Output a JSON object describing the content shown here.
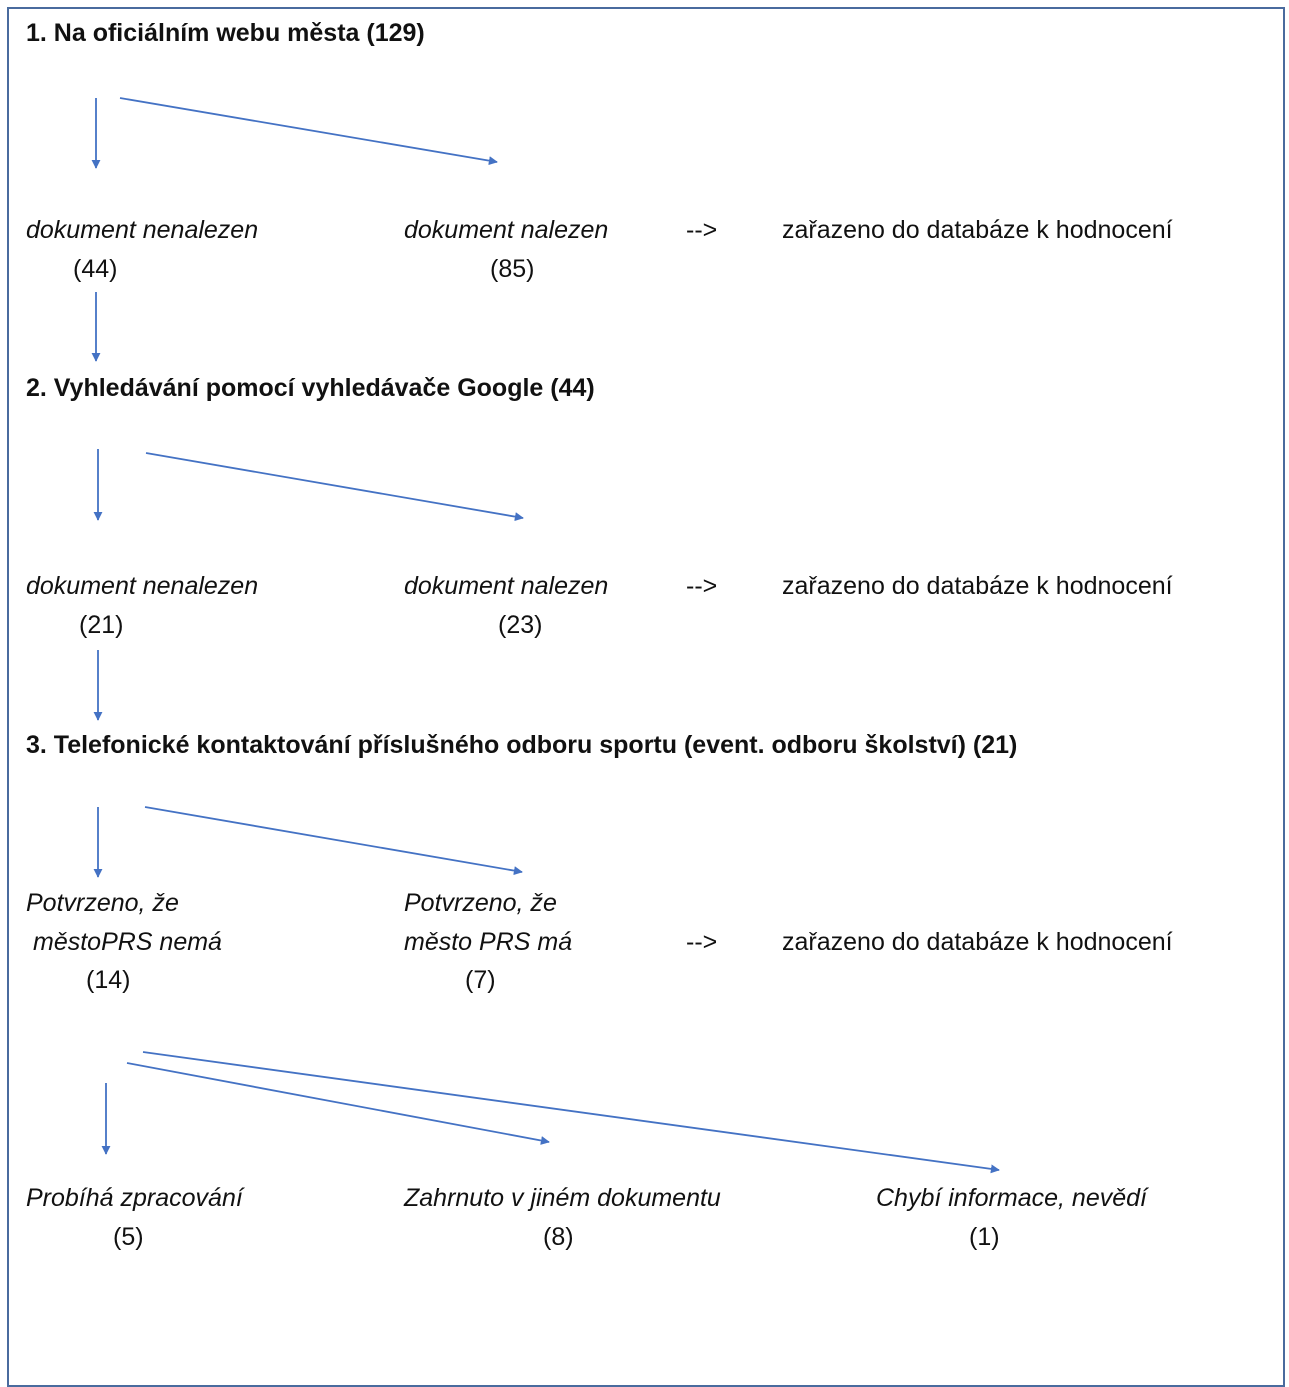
{
  "colors": {
    "arrow": "#4472c4",
    "frame": "#4a6b9e"
  },
  "step1": {
    "heading": "1. Na oficiálním webu města (129)",
    "not_found_label": "dokument nenalezen",
    "not_found_count": "(44)",
    "found_label": "dokument nalezen",
    "found_count": "(85)",
    "arrow_text": "-->",
    "result": "zařazeno do databáze k hodnocení"
  },
  "step2": {
    "heading": "2. Vyhledávání pomocí vyhledávače Google (44)",
    "not_found_label": "dokument nenalezen",
    "not_found_count": "(21)",
    "found_label": "dokument nalezen",
    "found_count": "(23)",
    "arrow_text": "-->",
    "result": "zařazeno do databáze k hodnocení"
  },
  "step3": {
    "heading": "3. Telefonické kontaktování příslušného odboru sportu (event. odboru školství) (21)",
    "no_line1": "Potvrzeno, že",
    "no_line2": "městoPRS nemá",
    "no_count": "(14)",
    "yes_line1": "Potvrzeno, že",
    "yes_line2": "město PRS má",
    "yes_count": "(7)",
    "arrow_text": "-->",
    "result": "zařazeno do databáze k hodnocení"
  },
  "step4": {
    "processing_label": "Probíhá zpracování",
    "processing_count": "(5)",
    "included_label": "Zahrnuto v jiném dokumentu",
    "included_count": "(8)",
    "missing_label": "Chybí informace, nevědí",
    "missing_count": "(1)"
  }
}
